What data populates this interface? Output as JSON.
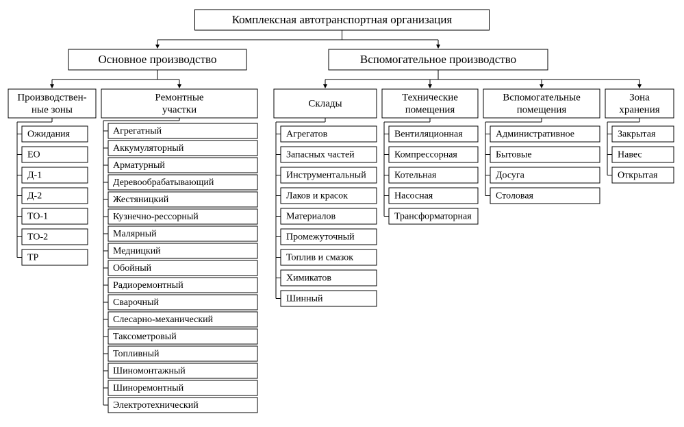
{
  "type": "tree",
  "background_color": "#ffffff",
  "border_color": "#000000",
  "text_color": "#000000",
  "font_family": "Times New Roman",
  "root": {
    "label": "Комплексная автотранспортная организация",
    "fontsize": 17
  },
  "level1": [
    {
      "label": "Основное производство",
      "fontsize": 17
    },
    {
      "label": "Вспомогательное производство",
      "fontsize": 17
    }
  ],
  "level2": {
    "main": [
      {
        "label_line1": "Производствен-",
        "label_line2": "ные зоны",
        "fontsize": 15
      },
      {
        "label_line1": "Ремонтные",
        "label_line2": "участки",
        "fontsize": 15
      }
    ],
    "aux": [
      {
        "label": "Склады",
        "fontsize": 15
      },
      {
        "label_line1": "Технические",
        "label_line2": "помещения",
        "fontsize": 15
      },
      {
        "label_line1": "Вспомогательные",
        "label_line2": "помещения",
        "fontsize": 15
      },
      {
        "label_line1": "Зона",
        "label_line2": "хранения",
        "fontsize": 15
      }
    ]
  },
  "leaves": {
    "zones": [
      "Ожидания",
      "ЕО",
      "Д-1",
      "Д-2",
      "ТО-1",
      "ТО-2",
      "ТР"
    ],
    "repair": [
      "Агрегатный",
      "Аккумуляторный",
      "Арматурный",
      "Деревообрабатывающий",
      "Жестяницкий",
      "Кузнечно-рессорный",
      "Малярный",
      "Медницкий",
      "Обойный",
      "Радиоремонтный",
      "Сварочный",
      "Слесарно-механический",
      "Таксометровый",
      "Топливный",
      "Шиномонтажный",
      "Шиноремонтный",
      "Электротехнический"
    ],
    "stores": [
      "Агрегатов",
      "Запасных частей",
      "Инструментальный",
      "Лаков и красок",
      "Материалов",
      "Промежуточный",
      "Топлив и смазок",
      "Химикатов",
      "Шинный"
    ],
    "tech": [
      "Вентиляционная",
      "Компрессорная",
      "Котельная",
      "Насосная",
      "Трансформаторная"
    ],
    "auxrooms": [
      "Административное",
      "Бытовые",
      "Досуга",
      "Столовая"
    ],
    "storage": [
      "Закрытая",
      "Навес",
      "Открытая"
    ]
  },
  "leaf_fontsize": 14,
  "leaf_row_height": 23,
  "leaf_row_gap": 7,
  "leaf_row_height_tight": 22
}
